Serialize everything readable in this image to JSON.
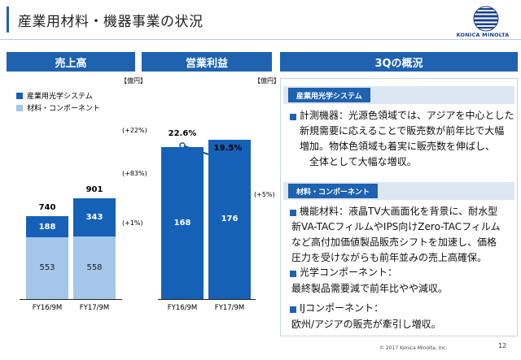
{
  "header": {
    "title": "産業用材料・機器事業の状況",
    "company": "KONICA MINOLTA"
  },
  "colors": {
    "accent": "#1e62b0",
    "series_optical": "#1661b8",
    "series_materials": "#a4c6ea"
  },
  "sales_panel": {
    "header": "売上高",
    "unit": "【億円】",
    "legend": [
      {
        "label": "産業用光学システム",
        "color": "#1661b8"
      },
      {
        "label": "材料・コンポーネント",
        "color": "#a4c6ea"
      }
    ],
    "growth": {
      "total": "(+22%)",
      "optical": "(+83%)",
      "materials": "(+1%)"
    }
  },
  "profit_panel": {
    "header": "営業利益",
    "unit": "【億円】",
    "growth": "(+5%)"
  },
  "chart_data": [
    {
      "type": "bar",
      "title": "売上高",
      "ylabel": "【億円】",
      "categories": [
        "FY16/9M",
        "FY17/9M"
      ],
      "stacked": true,
      "series": [
        {
          "name": "材料・コンポーネント",
          "values": [
            553,
            558
          ]
        },
        {
          "name": "産業用光学システム",
          "values": [
            188,
            343
          ]
        }
      ],
      "totals": [
        740,
        901
      ],
      "ylim": [
        0,
        1000
      ],
      "legend": "top-left",
      "grid": false
    },
    {
      "type": "bar",
      "title": "営業利益",
      "ylabel": "【億円】",
      "categories": [
        "FY16/9M",
        "FY17/9M"
      ],
      "values": [
        168,
        176
      ],
      "ylim": [
        0,
        1000
      ],
      "margin_line": {
        "values": [
          22.6,
          19.5
        ],
        "labels": [
          "22.6%",
          "19.5%"
        ]
      },
      "grid": false
    }
  ],
  "overview": {
    "header": "3Qの概況",
    "sections": [
      {
        "tag": "産業用光学システム",
        "paragraphs": [
          {
            "bullet": true,
            "lines": [
              "計測機器：光源色領域では、アジアを中心とした",
              "新規需要に応えることで販売数が前年比で大幅",
              "増加。物体色領域も着実に販売数を伸ばし、",
              "全体として大幅な増収。"
            ]
          }
        ]
      },
      {
        "tag": "材料・コンポーネント",
        "paragraphs": [
          {
            "bullet": true,
            "lines": [
              "機能材料：液晶TV大画面化を背景に、耐水型",
              "新VA-TACフィルムやIPS向けZero-TACフィルム",
              "など高付加価値製品販売シフトを加速し、価格",
              "圧力を受けながらも前年並みの売上高確保。"
            ]
          },
          {
            "bullet": true,
            "lines": [
              "光学コンポーネント："
            ]
          },
          {
            "bullet": false,
            "lines": [
              "最終製品需要減で前年比やや減収。"
            ]
          },
          {
            "bullet": true,
            "lines": [
              "IJコンポーネント："
            ]
          },
          {
            "bullet": false,
            "lines": [
              "欧州/アジアの販売が牽引し増収。"
            ]
          }
        ]
      }
    ]
  },
  "footer": {
    "copyright": "© 2017 Konica Minolta, Inc.",
    "page": "12"
  }
}
